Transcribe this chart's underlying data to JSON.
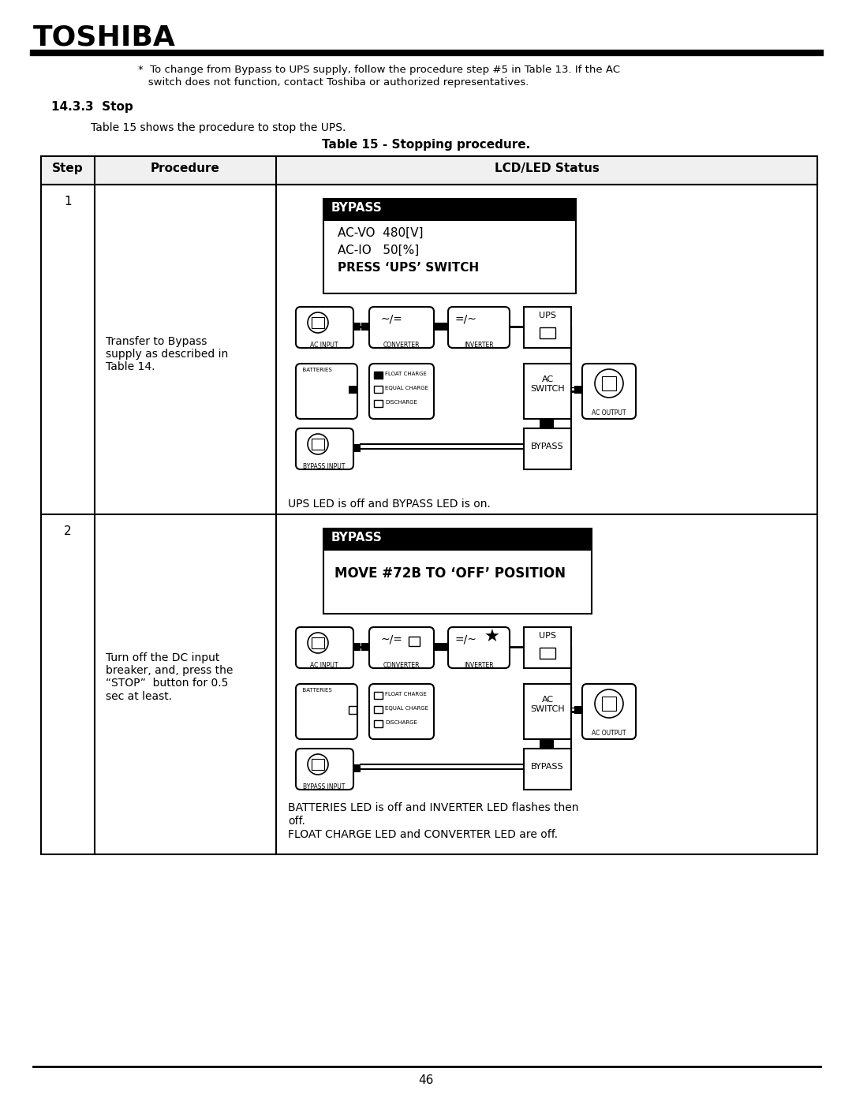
{
  "page_bg": "#ffffff",
  "brand": "TOSHIBA",
  "note_text_line1": "*  To change from Bypass to UPS supply, follow the procedure step #5 in Table 13. If the AC",
  "note_text_line2": "   switch does not function, contact Toshiba or authorized representatives.",
  "section_title": "14.3.3  Stop",
  "intro_text": "Table 15 shows the procedure to stop the UPS.",
  "table_title": "Table 15 - Stopping procedure.",
  "col_step": "Step",
  "col_proc": "Procedure",
  "col_lcd": "LCD/LED Status",
  "step1_num": "1",
  "step1_proc": "Transfer to Bypass\nsupply as described in\nTable 14.",
  "step1_lcd_title": "BYPASS",
  "step1_lcd_line1": "AC-VO  480[V]",
  "step1_lcd_line2": "AC-IO   50[%]",
  "step1_lcd_line3": "PRESS ‘UPS’ SWITCH",
  "step1_status": "UPS LED is off and BYPASS LED is on.",
  "step2_num": "2",
  "step2_proc": "Turn off the DC input\nbreaker, and, press the\n“STOP”  button for 0.5\nsec at least.",
  "step2_lcd_title": "BYPASS",
  "step2_lcd_line1": "MOVE #72B TO ‘OFF’ POSITION",
  "step2_status1": "BATTERIES LED is off and INVERTER LED flashes then",
  "step2_status2": "off.",
  "step2_status3": "FLOAT CHARGE LED and CONVERTER LED are off.",
  "footer_text": "46"
}
